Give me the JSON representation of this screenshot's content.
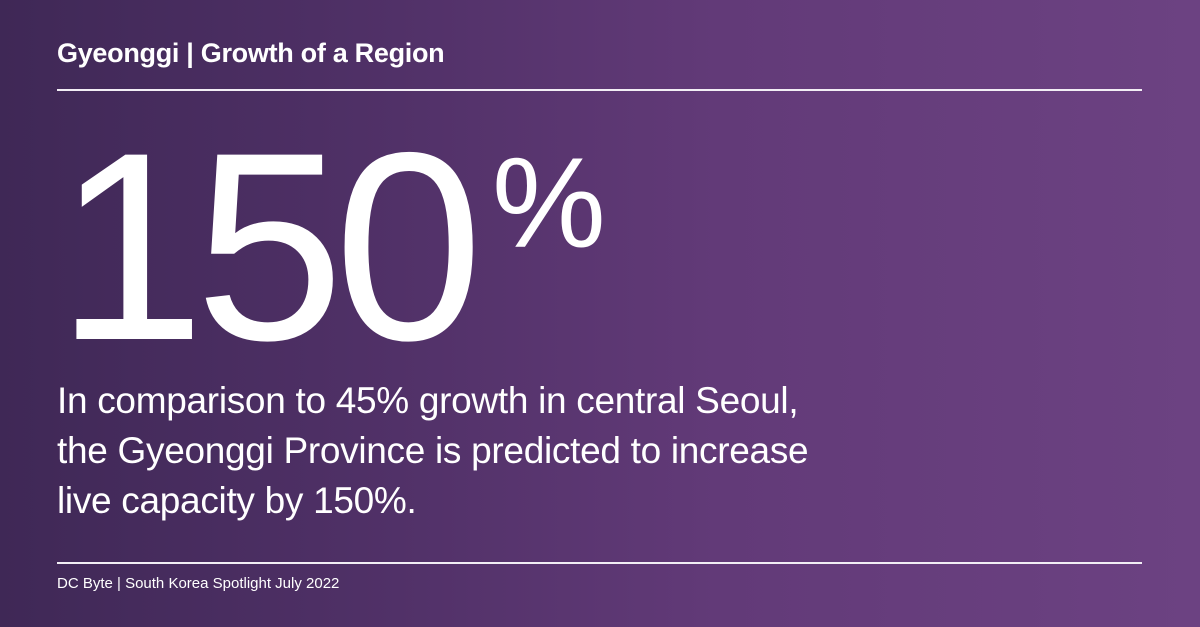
{
  "header": {
    "title": "Gyeonggi | Growth of a Region"
  },
  "stat": {
    "value": "150",
    "unit": "%"
  },
  "description": {
    "lines": [
      "In comparison to 45% growth in central Seoul,",
      "the Gyeonggi Province is predicted to increase",
      "live capacity by 150%."
    ]
  },
  "footer": {
    "source": "DC Byte | South Korea Spotlight July 2022"
  },
  "colors": {
    "background_left": "#3f2856",
    "background_right": "#6c4282",
    "text": "#ffffff"
  }
}
